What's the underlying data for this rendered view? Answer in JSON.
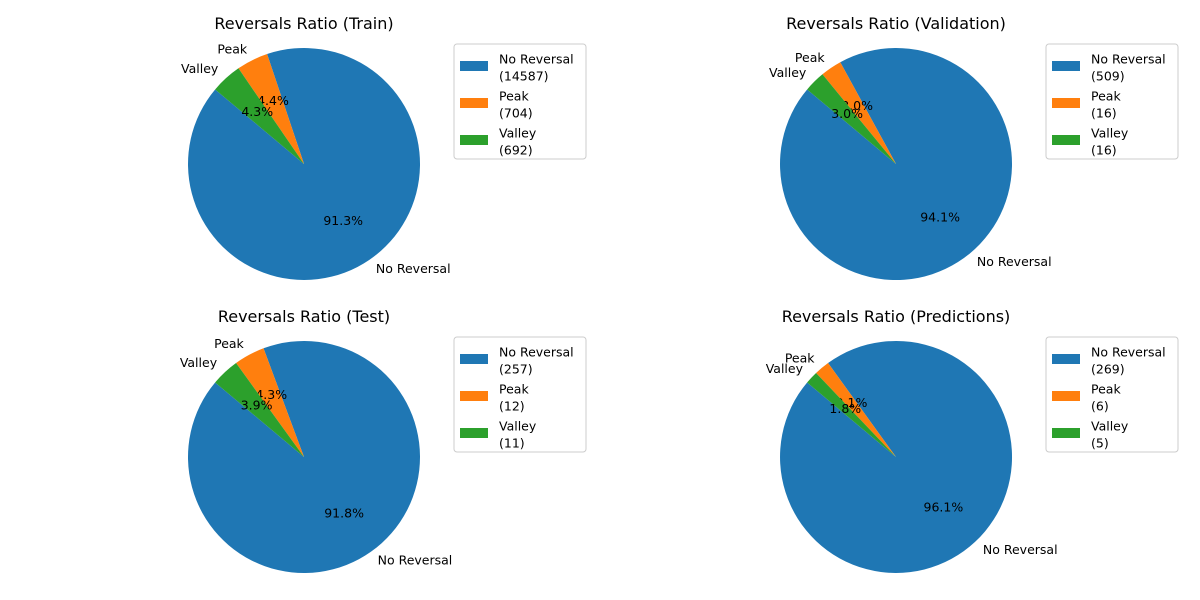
{
  "chart_data": [
    {
      "type": "pie",
      "title": "Reversals Ratio (Train)",
      "slices": [
        {
          "label": "No Reversal",
          "value": 14587,
          "percent_label": "91.3%",
          "legend": [
            "No Reversal",
            "(14587)"
          ]
        },
        {
          "label": "Peak",
          "value": 704,
          "percent_label": "4.4%",
          "legend": [
            "Peak",
            "(704)"
          ]
        },
        {
          "label": "Valley",
          "value": 692,
          "percent_label": "4.3%",
          "legend": [
            "Valley",
            "(692)"
          ]
        }
      ],
      "legend_position": "right"
    },
    {
      "type": "pie",
      "title": "Reversals Ratio (Validation)",
      "slices": [
        {
          "label": "No Reversal",
          "value": 509,
          "percent_label": "94.1%",
          "legend": [
            "No Reversal",
            "(509)"
          ]
        },
        {
          "label": "Peak",
          "value": 16,
          "percent_label": "3.0%",
          "legend": [
            "Peak",
            "(16)"
          ]
        },
        {
          "label": "Valley",
          "value": 16,
          "percent_label": "3.0%",
          "legend": [
            "Valley",
            "(16)"
          ]
        }
      ],
      "legend_position": "right"
    },
    {
      "type": "pie",
      "title": "Reversals Ratio (Test)",
      "slices": [
        {
          "label": "No Reversal",
          "value": 257,
          "percent_label": "91.8%",
          "legend": [
            "No Reversal",
            "(257)"
          ]
        },
        {
          "label": "Peak",
          "value": 12,
          "percent_label": "4.3%",
          "legend": [
            "Peak",
            "(12)"
          ]
        },
        {
          "label": "Valley",
          "value": 11,
          "percent_label": "3.9%",
          "legend": [
            "Valley",
            "(11)"
          ]
        }
      ],
      "legend_position": "right"
    },
    {
      "type": "pie",
      "title": "Reversals Ratio (Predictions)",
      "slices": [
        {
          "label": "No Reversal",
          "value": 269,
          "percent_label": "96.1%",
          "legend": [
            "No Reversal",
            "(269)"
          ]
        },
        {
          "label": "Peak",
          "value": 6,
          "percent_label": "2.1%",
          "legend": [
            "Peak",
            "(6)"
          ]
        },
        {
          "label": "Valley",
          "value": 5,
          "percent_label": "1.8%",
          "legend": [
            "Valley",
            "(5)"
          ]
        }
      ],
      "legend_position": "right"
    }
  ],
  "colors": {
    "No Reversal": "#1f77b4",
    "Peak": "#ff7f0e",
    "Valley": "#2ca02c"
  }
}
